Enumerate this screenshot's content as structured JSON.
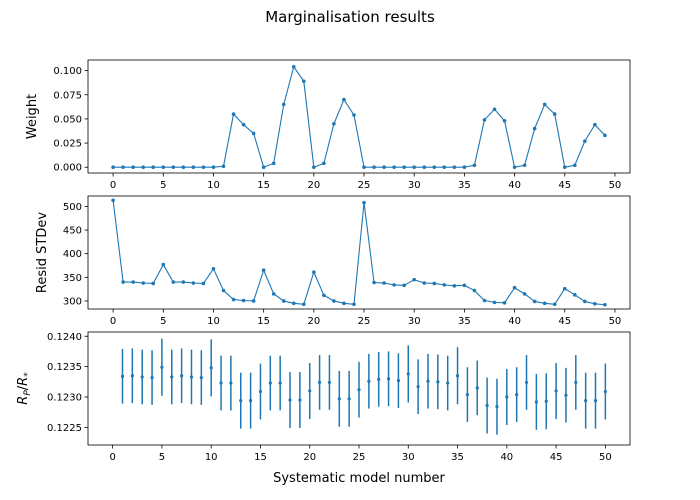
{
  "title": "Marginalisation results",
  "colors": {
    "series": "#1f77b4",
    "axes": "#000000"
  },
  "chart_data": [
    {
      "type": "line",
      "ylabel": "Weight",
      "xlabel": "",
      "xlim": [
        -2.5,
        51.5
      ],
      "ylim": [
        -0.006,
        0.111
      ],
      "xticks": [
        0,
        5,
        10,
        15,
        20,
        25,
        30,
        35,
        40,
        45,
        50
      ],
      "xtick_labels": [
        "0",
        "5",
        "10",
        "15",
        "20",
        "25",
        "30",
        "35",
        "40",
        "45",
        "50"
      ],
      "yticks": [
        0.0,
        0.025,
        0.05,
        0.075,
        0.1
      ],
      "ytick_labels": [
        "0.000",
        "0.025",
        "0.050",
        "0.075",
        "0.100"
      ],
      "grid": false,
      "markers": true,
      "x": [
        0,
        1,
        2,
        3,
        4,
        5,
        6,
        7,
        8,
        9,
        10,
        11,
        12,
        13,
        14,
        15,
        16,
        17,
        18,
        19,
        20,
        21,
        22,
        23,
        24,
        25,
        26,
        27,
        28,
        29,
        30,
        31,
        32,
        33,
        34,
        35,
        36,
        37,
        38,
        39,
        40,
        41,
        42,
        43,
        44,
        45,
        46,
        47,
        48,
        49
      ],
      "y": [
        0,
        0,
        0,
        0,
        0,
        0,
        0,
        0,
        0,
        0,
        0,
        0.001,
        0.055,
        0.044,
        0.035,
        0,
        0.004,
        0.065,
        0.104,
        0.089,
        0,
        0.004,
        0.045,
        0.07,
        0.054,
        0,
        0,
        0,
        0,
        0,
        0,
        0,
        0,
        0,
        0,
        0,
        0.002,
        0.049,
        0.06,
        0.048,
        0,
        0.002,
        0.04,
        0.065,
        0.055,
        0,
        0.002,
        0.027,
        0.044,
        0.033
      ]
    },
    {
      "type": "line",
      "ylabel": "Resid STDev",
      "xlabel": "",
      "xlim": [
        -2.5,
        51.5
      ],
      "ylim": [
        283,
        522
      ],
      "xticks": [
        0,
        5,
        10,
        15,
        20,
        25,
        30,
        35,
        40,
        45,
        50
      ],
      "xtick_labels": [
        "0",
        "5",
        "10",
        "15",
        "20",
        "25",
        "30",
        "35",
        "40",
        "45",
        "50"
      ],
      "yticks": [
        300,
        350,
        400,
        450,
        500
      ],
      "ytick_labels": [
        "300",
        "350",
        "400",
        "450",
        "500"
      ],
      "grid": false,
      "markers": true,
      "x": [
        0,
        1,
        2,
        3,
        4,
        5,
        6,
        7,
        8,
        9,
        10,
        11,
        12,
        13,
        14,
        15,
        16,
        17,
        18,
        19,
        20,
        21,
        22,
        23,
        24,
        25,
        26,
        27,
        28,
        29,
        30,
        31,
        32,
        33,
        34,
        35,
        36,
        37,
        38,
        39,
        40,
        41,
        42,
        43,
        44,
        45,
        46,
        47,
        48,
        49
      ],
      "y": [
        513,
        340,
        340,
        338,
        337,
        377,
        340,
        340,
        338,
        337,
        368,
        322,
        303,
        301,
        300,
        365,
        315,
        300,
        295,
        293,
        361,
        312,
        300,
        295,
        293,
        508,
        339,
        338,
        334,
        333,
        345,
        338,
        337,
        334,
        332,
        333,
        322,
        301,
        297,
        296,
        328,
        315,
        299,
        295,
        293,
        326,
        313,
        299,
        294,
        292
      ]
    },
    {
      "type": "scatter",
      "errorbars": true,
      "ylabel": "R_P/R_*",
      "xlabel": "Systematic model number",
      "xlim": [
        -2.5,
        52.5
      ],
      "ylim": [
        0.12221,
        0.12407
      ],
      "xticks": [
        0,
        5,
        10,
        15,
        20,
        25,
        30,
        35,
        40,
        45,
        50
      ],
      "xtick_labels": [
        "0",
        "5",
        "10",
        "15",
        "20",
        "25",
        "30",
        "35",
        "40",
        "45",
        "50"
      ],
      "yticks": [
        0.1225,
        0.123,
        0.1235,
        0.124
      ],
      "ytick_labels": [
        "0.1225",
        "0.1230",
        "0.1235",
        "0.1240"
      ],
      "grid": false,
      "x": [
        1,
        2,
        3,
        4,
        5,
        6,
        7,
        8,
        9,
        10,
        11,
        12,
        13,
        14,
        15,
        16,
        17,
        18,
        19,
        20,
        21,
        22,
        23,
        24,
        25,
        26,
        27,
        28,
        29,
        30,
        31,
        32,
        33,
        34,
        35,
        36,
        37,
        38,
        39,
        40,
        41,
        42,
        43,
        44,
        45,
        46,
        47,
        48,
        49,
        50
      ],
      "y": [
        0.12334,
        0.12335,
        0.12333,
        0.12332,
        0.12349,
        0.12333,
        0.12335,
        0.12333,
        0.12332,
        0.12348,
        0.12323,
        0.12323,
        0.12294,
        0.12294,
        0.12309,
        0.12323,
        0.12323,
        0.12295,
        0.12295,
        0.1231,
        0.12324,
        0.12324,
        0.12297,
        0.12297,
        0.12312,
        0.12326,
        0.12329,
        0.1233,
        0.12327,
        0.12338,
        0.12317,
        0.12326,
        0.12325,
        0.12323,
        0.12335,
        0.12304,
        0.12315,
        0.12286,
        0.12284,
        0.123,
        0.12304,
        0.12324,
        0.12292,
        0.12293,
        0.1231,
        0.12303,
        0.12324,
        0.12294,
        0.12294,
        0.12309
      ],
      "err": [
        0.00045,
        0.00045,
        0.00045,
        0.00045,
        0.00047,
        0.00045,
        0.00045,
        0.00045,
        0.00045,
        0.00047,
        0.00045,
        0.00045,
        0.00046,
        0.00046,
        0.00046,
        0.00045,
        0.00045,
        0.00046,
        0.00046,
        0.00046,
        0.00045,
        0.00045,
        0.00046,
        0.00046,
        0.00046,
        0.00045,
        0.00045,
        0.00045,
        0.00045,
        0.00047,
        0.00045,
        0.00045,
        0.00045,
        0.00045,
        0.00047,
        0.00045,
        0.00045,
        0.00046,
        0.00046,
        0.00046,
        0.00045,
        0.00045,
        0.00046,
        0.00046,
        0.00046,
        0.00045,
        0.00045,
        0.00046,
        0.00046,
        0.00046
      ]
    }
  ]
}
